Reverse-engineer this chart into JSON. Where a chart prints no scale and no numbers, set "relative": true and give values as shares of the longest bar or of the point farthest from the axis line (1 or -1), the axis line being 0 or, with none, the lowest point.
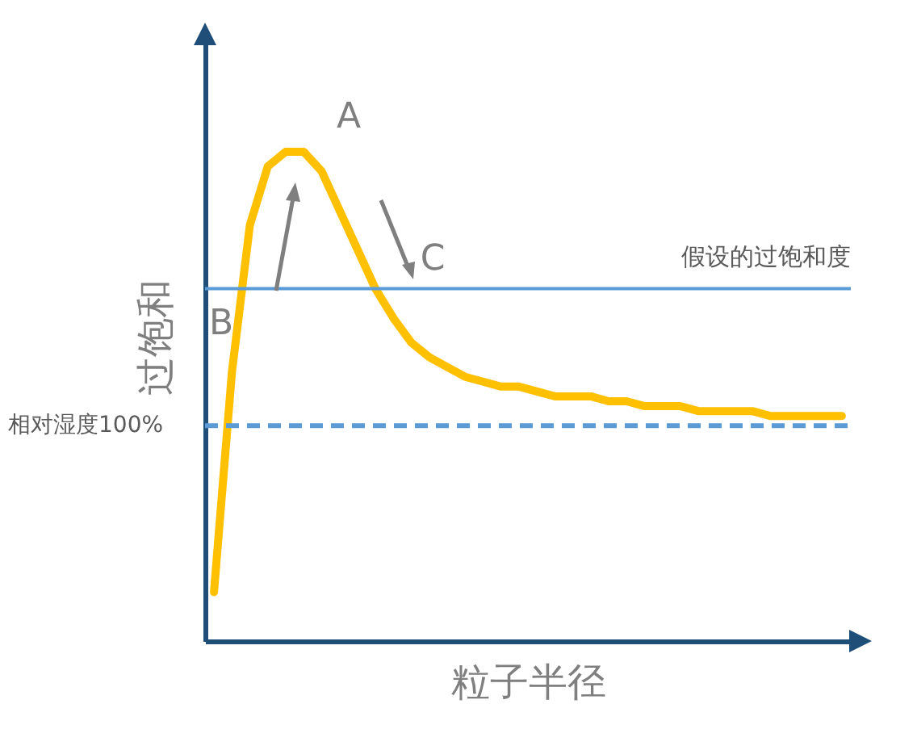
{
  "chart_data": {
    "type": "line",
    "relative": true,
    "xlabel": "粒子半径",
    "ylabel": "过饱和",
    "tick_labels": false,
    "grid": false,
    "categories": [
      null,
      null,
      null,
      null,
      null,
      null,
      null,
      null,
      null,
      null,
      null,
      null,
      null,
      null,
      null,
      null,
      null,
      null,
      null,
      null,
      null,
      null,
      null,
      null,
      null,
      null,
      null,
      null,
      null,
      null,
      null,
      null,
      null,
      null,
      null,
      null
    ],
    "series": [
      {
        "color": "#ffc000",
        "values": [
          0.1,
          0.55,
          0.85,
          0.97,
          1.0,
          1.0,
          0.96,
          0.88,
          0.8,
          0.72,
          0.66,
          0.61,
          0.58,
          0.56,
          0.54,
          0.53,
          0.52,
          0.52,
          0.51,
          0.5,
          0.5,
          0.5,
          0.49,
          0.49,
          0.48,
          0.48,
          0.48,
          0.47,
          0.47,
          0.47,
          0.47,
          0.46,
          0.46,
          0.46,
          0.46,
          0.46
        ]
      }
    ],
    "ref_lines": [
      {
        "axis": "y",
        "value": 0.72,
        "label": "假设的过饱和度",
        "color": "#5b9bd5",
        "line_style": "solid"
      },
      {
        "axis": "y",
        "value": 0.44,
        "label": "相对湿度100%",
        "color": "#5b9bd5",
        "line_style": "dashed"
      }
    ],
    "annotations": [
      "A",
      "B",
      "C"
    ]
  }
}
